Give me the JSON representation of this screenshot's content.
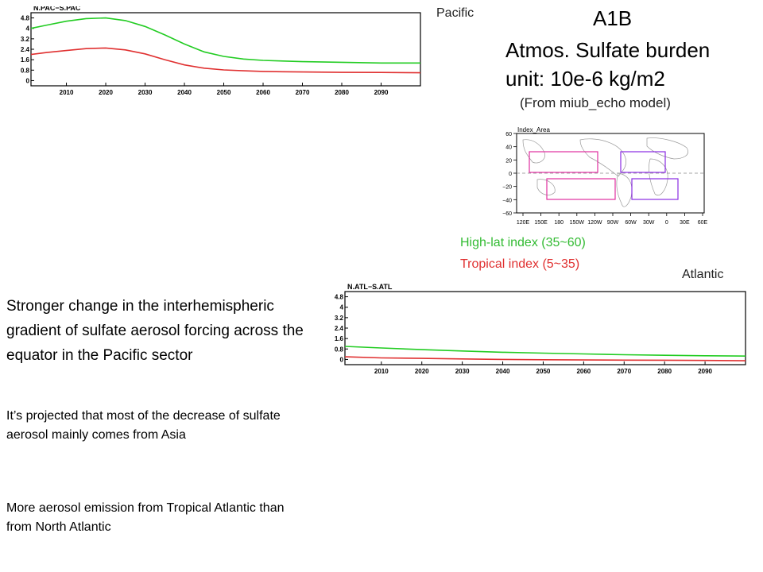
{
  "slide": {
    "title_scenario": "A1B",
    "title_variable": "Atmos. Sulfate burden",
    "title_unit": "unit: 10e-6  kg/m2",
    "source": "(From miub_echo model)",
    "label_pacific": "Pacific",
    "label_atlantic": "Atlantic",
    "legend_high": "High-lat index (35~60)",
    "legend_tropical": "Tropical index (5~35)",
    "note_1": "Stronger change in the interhemispheric gradient of sulfate aerosol forcing across the equator in the Pacific sector",
    "note_2": "It’s projected that  most of the decrease of sulfate aerosol mainly comes from Asia",
    "note_3": "More aerosol emission from Tropical Atlantic than  from North Atlantic"
  },
  "colors": {
    "high_lat": "#22cc22",
    "tropical": "#e03030",
    "legend_high_text": "#33bb33",
    "legend_trop_text": "#e03030",
    "box_pink": "#e0309f",
    "box_purple": "#8a2be2"
  },
  "chart_data": [
    {
      "type": "line",
      "title": "N.PAC−S.PAC",
      "xlabel": "",
      "ylabel": "",
      "xlim": [
        2001,
        2100
      ],
      "ylim": [
        -0.4,
        5.2
      ],
      "x_ticks": [
        2010,
        2020,
        2030,
        2040,
        2050,
        2060,
        2070,
        2080,
        2090
      ],
      "y_ticks": [
        0,
        0.8,
        1.6,
        2.4,
        3.2,
        4,
        4.8
      ],
      "y_tick_labels": [
        "0",
        "0.8",
        "1.6",
        "2.4",
        "3.2",
        "4",
        "4.8"
      ],
      "grid": false,
      "x": [
        2001,
        2005,
        2010,
        2015,
        2020,
        2025,
        2030,
        2035,
        2040,
        2045,
        2050,
        2055,
        2060,
        2065,
        2070,
        2080,
        2090,
        2100
      ],
      "series": [
        {
          "color": "#22cc22",
          "values": [
            4.0,
            4.25,
            4.55,
            4.75,
            4.8,
            4.6,
            4.15,
            3.5,
            2.8,
            2.2,
            1.85,
            1.65,
            1.55,
            1.5,
            1.45,
            1.4,
            1.35,
            1.35
          ]
        },
        {
          "color": "#e03030",
          "values": [
            2.0,
            2.15,
            2.3,
            2.45,
            2.5,
            2.35,
            2.05,
            1.6,
            1.2,
            0.95,
            0.82,
            0.75,
            0.7,
            0.68,
            0.66,
            0.63,
            0.62,
            0.6
          ]
        }
      ]
    },
    {
      "type": "line",
      "title": "N.ATL−S.ATL",
      "xlabel": "",
      "ylabel": "",
      "xlim": [
        2001,
        2100
      ],
      "ylim": [
        -0.4,
        5.2
      ],
      "x_ticks": [
        2010,
        2020,
        2030,
        2040,
        2050,
        2060,
        2070,
        2080,
        2090
      ],
      "y_ticks": [
        0,
        0.8,
        1.6,
        2.4,
        3.2,
        4,
        4.8
      ],
      "y_tick_labels": [
        "0",
        "0.8",
        "1.6",
        "2.4",
        "3.2",
        "4",
        "4.8"
      ],
      "grid": false,
      "x": [
        2001,
        2010,
        2020,
        2030,
        2040,
        2050,
        2060,
        2070,
        2080,
        2090,
        2100
      ],
      "series": [
        {
          "color": "#22cc22",
          "values": [
            1.0,
            0.88,
            0.75,
            0.65,
            0.55,
            0.48,
            0.42,
            0.36,
            0.32,
            0.28,
            0.26
          ]
        },
        {
          "color": "#e03030",
          "values": [
            0.2,
            0.12,
            0.08,
            0.04,
            0.0,
            -0.02,
            -0.04,
            -0.05,
            -0.06,
            -0.08,
            -0.1
          ]
        }
      ]
    }
  ],
  "index_map": {
    "title": "Index_Area",
    "lat_ticks": [
      "60",
      "40",
      "20",
      "0",
      "−20",
      "−40",
      "−60"
    ],
    "lon_ticks": [
      "120E",
      "150E",
      "180",
      "150W",
      "120W",
      "90W",
      "60W",
      "30W",
      "0",
      "30E",
      "60E"
    ]
  }
}
